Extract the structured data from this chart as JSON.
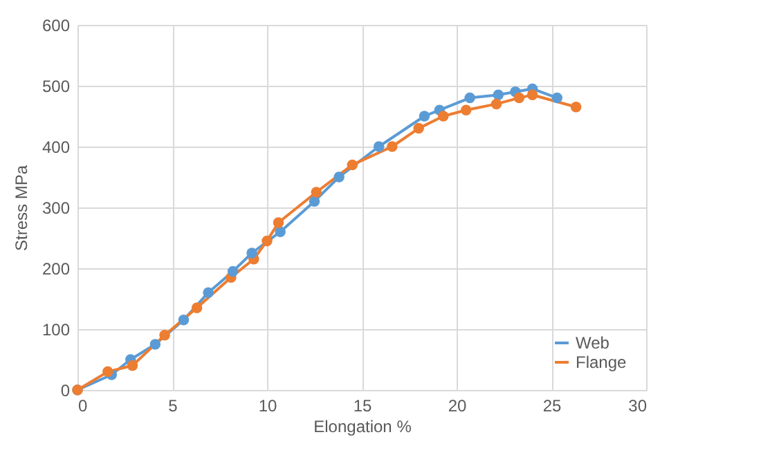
{
  "chart_data": {
    "type": "line",
    "xlabel": "Elongation %",
    "ylabel": "Stress MPa",
    "xlim": [
      0,
      30
    ],
    "xticks": [
      0,
      5,
      10,
      15,
      20,
      25,
      30
    ],
    "ylim": [
      0,
      600
    ],
    "yticks": [
      0,
      100,
      200,
      300,
      400,
      500,
      600
    ],
    "grid": true,
    "legend": "right",
    "marker": "circle",
    "line_style": "solid",
    "series": [
      {
        "name": "Web",
        "color": "#5b9bd5",
        "x": [
          0,
          1.8,
          2.8,
          4.1,
          5.6,
          6.9,
          8.2,
          9.2,
          10.7,
          12.5,
          13.8,
          15.9,
          18.3,
          19.1,
          20.7,
          22.2,
          23.1,
          24,
          25.3
        ],
        "values": [
          0,
          25,
          50,
          75,
          115,
          160,
          195,
          225,
          260,
          310,
          350,
          400,
          450,
          460,
          480,
          485,
          490,
          495,
          480
        ]
      },
      {
        "name": "Flange",
        "color": "#ed7d31",
        "x": [
          0,
          1.6,
          2.9,
          4.6,
          6.3,
          8.1,
          9.3,
          10,
          10.6,
          12.6,
          14.5,
          16.6,
          18,
          19.3,
          20.5,
          22.1,
          23.3,
          24,
          26.3
        ],
        "values": [
          0,
          30,
          40,
          90,
          135,
          185,
          215,
          245,
          275,
          325,
          370,
          400,
          430,
          450,
          460,
          470,
          480,
          485,
          465
        ]
      }
    ]
  }
}
